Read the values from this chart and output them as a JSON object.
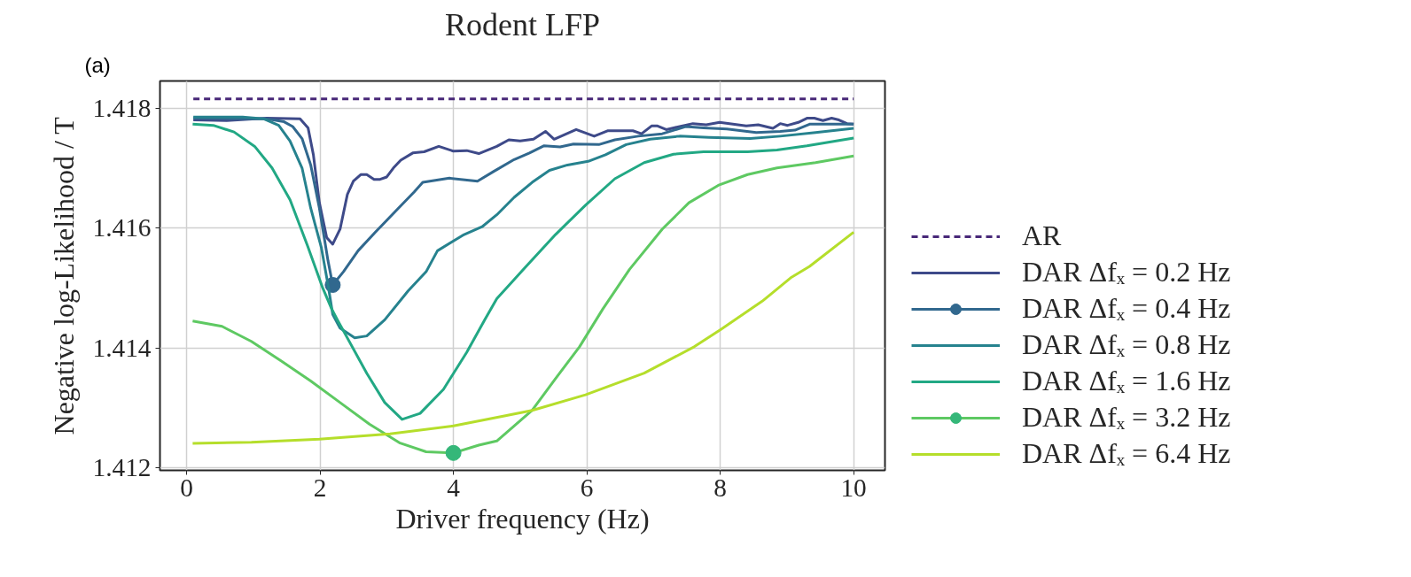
{
  "chart_data": {
    "type": "line",
    "title": "Rodent LFP",
    "xlabel": "Driver frequency (Hz)",
    "ylabel": "Negative log-Likelihood / T",
    "annotations": [
      "(a)"
    ],
    "xlim": [
      -0.4,
      10.47
    ],
    "ylim": [
      1.41196,
      1.41845
    ],
    "xticks": [
      0,
      2,
      4,
      6,
      8,
      10
    ],
    "yticks": [
      {
        "value": 1.412,
        "label": "1.412"
      },
      {
        "value": 1.414,
        "label": "1.414"
      },
      {
        "value": 1.416,
        "label": "1.416"
      },
      {
        "value": 1.418,
        "label": "1.418"
      }
    ],
    "grid": true,
    "legend": "right",
    "series": [
      {
        "name": "AR",
        "color": "#482878",
        "line_style": "dashed",
        "x": [
          0.1,
          10
        ],
        "values": [
          1.41815,
          1.41815
        ]
      },
      {
        "name": "DAR Δfₓ = 0.2 Hz",
        "color": "#3e4a89",
        "x": [
          0.1,
          0.6,
          1.2,
          1.7,
          1.82,
          1.9,
          1.99,
          2.1,
          2.19,
          2.3,
          2.41,
          2.5,
          2.61,
          2.7,
          2.81,
          2.9,
          3.0,
          3.1,
          3.21,
          3.39,
          3.56,
          3.78,
          4.0,
          4.2,
          4.38,
          4.65,
          4.83,
          5.0,
          5.2,
          5.38,
          5.51,
          5.84,
          6.11,
          6.31,
          6.69,
          6.82,
          6.97,
          7.06,
          7.19,
          7.59,
          7.79,
          7.99,
          8.19,
          8.39,
          8.57,
          8.79,
          8.9,
          9.01,
          9.17,
          9.3,
          9.41,
          9.54,
          9.67,
          9.78,
          9.9,
          10.0
        ],
        "values": [
          1.4178,
          1.41779,
          1.41783,
          1.41782,
          1.41767,
          1.41722,
          1.41642,
          1.41584,
          1.41573,
          1.41598,
          1.41656,
          1.41678,
          1.41689,
          1.41689,
          1.41681,
          1.41681,
          1.41685,
          1.417,
          1.41713,
          1.41725,
          1.41727,
          1.41736,
          1.41728,
          1.41729,
          1.41724,
          1.41736,
          1.41747,
          1.41745,
          1.41748,
          1.41761,
          1.41748,
          1.41764,
          1.41753,
          1.41762,
          1.41762,
          1.41757,
          1.4177,
          1.4177,
          1.41764,
          1.41774,
          1.41772,
          1.41776,
          1.41773,
          1.4177,
          1.41772,
          1.41766,
          1.41774,
          1.41771,
          1.41776,
          1.41783,
          1.41783,
          1.41779,
          1.41783,
          1.4178,
          1.41774,
          1.41773
        ]
      },
      {
        "name": "DAR Δfₓ = 0.4 Hz",
        "color": "#31688e",
        "x": [
          0.1,
          0.7,
          1.2,
          1.46,
          1.59,
          1.73,
          1.86,
          1.99,
          2.12,
          2.19,
          2.35,
          2.57,
          2.83,
          3.14,
          3.41,
          3.54,
          3.94,
          4.36,
          4.6,
          4.91,
          5.14,
          5.36,
          5.6,
          5.8,
          6.18,
          6.42,
          6.77,
          7.13,
          7.48,
          7.75,
          8.1,
          8.54,
          8.9,
          9.12,
          9.34,
          9.65,
          10.0
        ],
        "values": [
          1.41783,
          1.41782,
          1.41782,
          1.41777,
          1.41769,
          1.41749,
          1.41705,
          1.41633,
          1.41545,
          1.41505,
          1.41527,
          1.41562,
          1.41593,
          1.41629,
          1.4166,
          1.41676,
          1.41683,
          1.41678,
          1.41694,
          1.41714,
          1.41725,
          1.41737,
          1.41735,
          1.4174,
          1.41739,
          1.41747,
          1.41753,
          1.41757,
          1.41769,
          1.41767,
          1.41765,
          1.41759,
          1.41761,
          1.41763,
          1.41773,
          1.41773,
          1.41773
        ]
      },
      {
        "type": "scatter",
        "color": "#31688e",
        "x": [
          2.19
        ],
        "values": [
          1.41505
        ]
      },
      {
        "name": "DAR Δfₓ = 0.8 Hz",
        "color": "#26828e",
        "x": [
          0.1,
          0.84,
          1.15,
          1.38,
          1.55,
          1.73,
          1.86,
          2.02,
          2.12,
          2.19,
          2.3,
          2.52,
          2.7,
          2.97,
          3.32,
          3.59,
          3.76,
          4.16,
          4.43,
          4.65,
          4.91,
          5.18,
          5.44,
          5.71,
          6.02,
          6.28,
          6.59,
          6.95,
          7.39,
          7.83,
          8.45,
          8.9,
          9.43,
          10.0
        ],
        "values": [
          1.41785,
          1.41785,
          1.41782,
          1.41771,
          1.41745,
          1.417,
          1.41633,
          1.41567,
          1.41505,
          1.41456,
          1.41433,
          1.41417,
          1.4142,
          1.41447,
          1.41495,
          1.41527,
          1.41562,
          1.41589,
          1.41602,
          1.41622,
          1.41651,
          1.41676,
          1.41696,
          1.41705,
          1.41711,
          1.41722,
          1.41739,
          1.41748,
          1.41753,
          1.41751,
          1.41749,
          1.41753,
          1.41759,
          1.41766
        ]
      },
      {
        "name": "DAR Δfₓ = 1.6 Hz",
        "color": "#22a884",
        "x": [
          0.09,
          0.4,
          0.71,
          1.02,
          1.28,
          1.55,
          1.81,
          2.04,
          2.17,
          2.26,
          2.7,
          2.97,
          3.23,
          3.5,
          3.85,
          4.2,
          4.47,
          4.65,
          5.09,
          5.53,
          5.98,
          6.42,
          6.86,
          7.3,
          7.75,
          8.41,
          8.85,
          9.3,
          10.0
        ],
        "values": [
          1.41773,
          1.41771,
          1.4176,
          1.41736,
          1.417,
          1.41647,
          1.41571,
          1.415,
          1.41466,
          1.41447,
          1.41358,
          1.41309,
          1.41281,
          1.41291,
          1.41331,
          1.41393,
          1.41447,
          1.41482,
          1.41536,
          1.41589,
          1.41638,
          1.41682,
          1.41709,
          1.41723,
          1.41727,
          1.41727,
          1.4173,
          1.41737,
          1.4175
        ]
      },
      {
        "name": "DAR Δfₓ = 3.2 Hz",
        "color": "#5ec962",
        "x": [
          0.09,
          0.53,
          0.97,
          1.42,
          1.86,
          2.3,
          2.74,
          3.19,
          3.59,
          4.0,
          4.38,
          4.65,
          5.18,
          5.53,
          5.89,
          6.24,
          6.64,
          7.13,
          7.53,
          7.97,
          8.41,
          8.85,
          9.43,
          10.0
        ],
        "values": [
          1.41445,
          1.41436,
          1.41411,
          1.41378,
          1.41345,
          1.41309,
          1.41273,
          1.41242,
          1.41227,
          1.41225,
          1.41238,
          1.41245,
          1.41296,
          1.41349,
          1.41402,
          1.41465,
          1.41531,
          1.41598,
          1.41642,
          1.41671,
          1.41689,
          1.417,
          1.41709,
          1.4172
        ]
      },
      {
        "type": "scatter",
        "color": "#35b779",
        "x": [
          4.0
        ],
        "values": [
          1.41225
        ]
      },
      {
        "name": "DAR Δfₓ = 6.4 Hz",
        "color": "#b5de2b",
        "x": [
          0.09,
          0.97,
          1.99,
          3.05,
          4.0,
          4.78,
          5.18,
          5.98,
          6.86,
          7.61,
          8.01,
          8.63,
          9.07,
          9.34,
          10.0
        ],
        "values": [
          1.41241,
          1.41243,
          1.41248,
          1.41257,
          1.4127,
          1.41287,
          1.41296,
          1.41322,
          1.41358,
          1.41402,
          1.41431,
          1.41478,
          1.41518,
          1.41536,
          1.41593
        ]
      }
    ]
  }
}
